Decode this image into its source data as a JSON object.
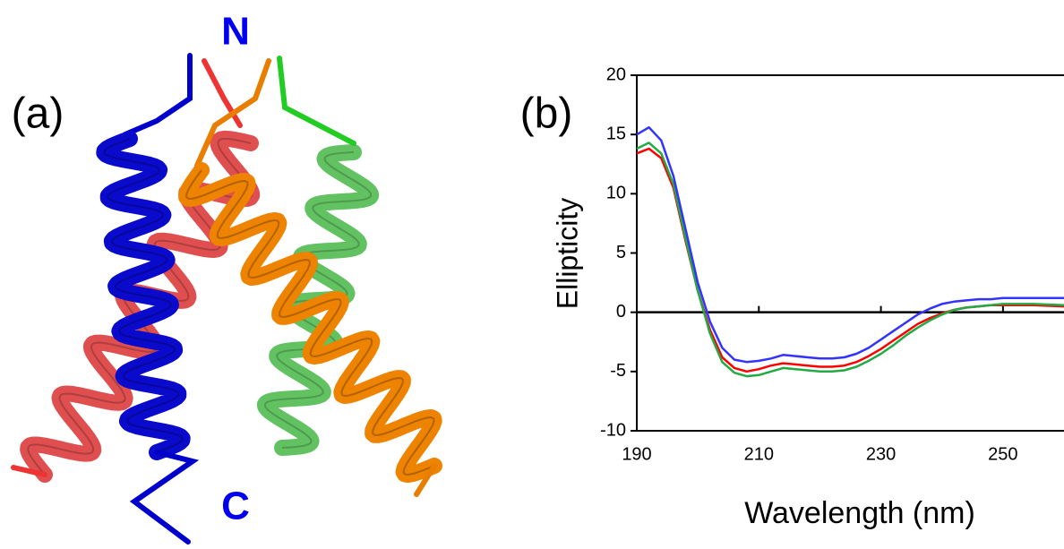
{
  "panels": {
    "a": {
      "label": "(a)",
      "n_terminus": "N",
      "c_terminus": "C"
    }
  },
  "chart_data": {
    "type": "line",
    "panel_label": "(b)",
    "x_label": "Wavelength (nm)",
    "y_label": "Ellipticity",
    "x": [
      190,
      192,
      194,
      196,
      198,
      200,
      202,
      204,
      206,
      208,
      210,
      212,
      214,
      216,
      218,
      220,
      222,
      224,
      226,
      228,
      230,
      232,
      234,
      236,
      238,
      240,
      242,
      244,
      246,
      248,
      250,
      255,
      260
    ],
    "series": [
      {
        "color": "#ff0000",
        "values": [
          13.4,
          13.8,
          13.0,
          10.5,
          6.0,
          1.8,
          -1.5,
          -3.8,
          -4.7,
          -5.0,
          -4.8,
          -4.5,
          -4.3,
          -4.4,
          -4.5,
          -4.6,
          -4.6,
          -4.5,
          -4.2,
          -3.7,
          -3.1,
          -2.4,
          -1.7,
          -1.0,
          -0.5,
          -0.1,
          0.2,
          0.4,
          0.5,
          0.6,
          0.6,
          0.6,
          0.5
        ]
      },
      {
        "color": "#22aa44",
        "values": [
          13.8,
          14.3,
          13.4,
          10.8,
          6.2,
          1.8,
          -1.8,
          -4.2,
          -5.1,
          -5.4,
          -5.3,
          -5.0,
          -4.7,
          -4.8,
          -4.9,
          -5.0,
          -5.0,
          -4.9,
          -4.6,
          -4.1,
          -3.5,
          -2.8,
          -2.0,
          -1.3,
          -0.7,
          -0.2,
          0.2,
          0.4,
          0.5,
          0.6,
          0.7,
          0.7,
          0.6
        ]
      },
      {
        "color": "#3333ff",
        "values": [
          15.0,
          15.6,
          14.5,
          11.5,
          7.0,
          2.5,
          -0.8,
          -3.0,
          -4.0,
          -4.2,
          -4.1,
          -3.9,
          -3.6,
          -3.7,
          -3.8,
          -3.9,
          -3.9,
          -3.8,
          -3.5,
          -3.0,
          -2.3,
          -1.6,
          -0.9,
          -0.2,
          0.3,
          0.7,
          0.9,
          1.0,
          1.1,
          1.1,
          1.2,
          1.2,
          1.2
        ]
      }
    ],
    "xlim": [
      190,
      260
    ],
    "ylim": [
      -10,
      20
    ],
    "xticks": [
      190,
      210,
      230,
      250
    ],
    "yticks": [
      -10,
      -5,
      0,
      5,
      10,
      15,
      20
    ],
    "zero_line": true
  }
}
